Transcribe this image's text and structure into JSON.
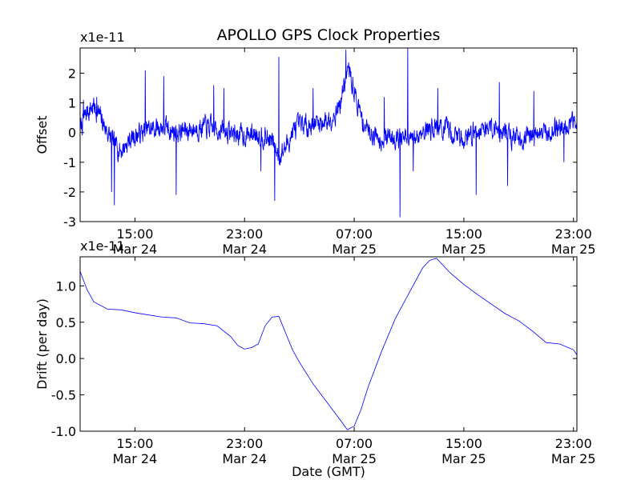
{
  "figure": {
    "title": "APOLLO GPS Clock Properties"
  },
  "chart_data": [
    {
      "type": "line",
      "title": "APOLLO GPS Clock Properties",
      "xlabel": "",
      "ylabel": "Offset",
      "offset_label": "x1e-11",
      "x_unit": "hours since Mar 24 11:00 GMT",
      "xlim": [
        0,
        36.25
      ],
      "ylim": [
        -3,
        2.85
      ],
      "x_ticks": [
        {
          "x": 4,
          "time": "15:00",
          "date": "Mar 24"
        },
        {
          "x": 12,
          "time": "23:00",
          "date": "Mar 24"
        },
        {
          "x": 20,
          "time": "07:00",
          "date": "Mar 25"
        },
        {
          "x": 28,
          "time": "15:00",
          "date": "Mar 25"
        },
        {
          "x": 36,
          "time": "23:00",
          "date": "Mar 25"
        }
      ],
      "y_ticks": [
        -3,
        -2,
        -1,
        0,
        1,
        2
      ],
      "y_tick_labels": [
        "-3",
        "-2",
        "-1",
        "0",
        "1",
        "2"
      ],
      "grid": false,
      "color": "#0000ff",
      "noise_amplitude": 0.38,
      "base_curve": {
        "x": [
          0,
          0.5,
          1,
          1.5,
          2,
          2.5,
          3,
          3.5,
          4,
          5,
          6,
          7,
          8,
          9,
          10,
          11,
          12,
          13,
          14,
          14.5,
          15,
          15.5,
          16,
          17,
          18,
          18.5,
          19,
          19.3,
          19.6,
          20,
          20.5,
          21,
          22,
          23,
          24,
          24.5,
          25,
          26,
          27,
          28,
          29,
          30,
          31,
          32,
          33,
          34,
          35,
          36,
          36.25
        ],
        "y": [
          0.1,
          0.7,
          0.9,
          0.5,
          0.0,
          -0.4,
          -0.6,
          -0.3,
          -0.1,
          0.1,
          0.2,
          0.0,
          0.1,
          0.2,
          0.1,
          0.0,
          -0.1,
          0.0,
          -0.3,
          -0.8,
          -0.5,
          0.0,
          0.2,
          0.3,
          0.4,
          0.6,
          1.0,
          1.7,
          2.1,
          1.4,
          0.5,
          0.1,
          -0.2,
          -0.1,
          -0.3,
          -0.2,
          0.1,
          0.2,
          0.0,
          -0.2,
          0.1,
          0.2,
          0.0,
          -0.2,
          -0.1,
          0.0,
          0.2,
          0.3,
          0.4
        ]
      },
      "spikes": [
        {
          "x": 0.25,
          "y": 1.1
        },
        {
          "x": 1.2,
          "y": 1.2
        },
        {
          "x": 2.3,
          "y": -2.0
        },
        {
          "x": 2.5,
          "y": -2.45
        },
        {
          "x": 4.75,
          "y": 2.1
        },
        {
          "x": 6.1,
          "y": 1.9
        },
        {
          "x": 7.0,
          "y": -2.1
        },
        {
          "x": 9.75,
          "y": 1.6
        },
        {
          "x": 10.5,
          "y": 1.5
        },
        {
          "x": 13.2,
          "y": -1.3
        },
        {
          "x": 14.2,
          "y": -2.3
        },
        {
          "x": 14.5,
          "y": 2.55
        },
        {
          "x": 17.0,
          "y": 1.5
        },
        {
          "x": 19.4,
          "y": 2.8
        },
        {
          "x": 22.2,
          "y": 1.2
        },
        {
          "x": 23.35,
          "y": -2.85
        },
        {
          "x": 23.9,
          "y": 2.9
        },
        {
          "x": 24.3,
          "y": -1.3
        },
        {
          "x": 26.1,
          "y": 1.5
        },
        {
          "x": 28.9,
          "y": -2.1
        },
        {
          "x": 30.6,
          "y": 1.7
        },
        {
          "x": 31.2,
          "y": -1.8
        },
        {
          "x": 33.1,
          "y": 1.4
        },
        {
          "x": 35.3,
          "y": -1.0
        }
      ]
    },
    {
      "type": "line",
      "title": "",
      "xlabel": "Date (GMT)",
      "ylabel": "Drift (per day)",
      "offset_label": "x1e-11",
      "x_unit": "hours since Mar 24 11:00 GMT",
      "xlim": [
        0,
        36.25
      ],
      "ylim": [
        -1.0,
        1.4
      ],
      "x_ticks": [
        {
          "x": 4,
          "time": "15:00",
          "date": "Mar 24"
        },
        {
          "x": 12,
          "time": "23:00",
          "date": "Mar 24"
        },
        {
          "x": 20,
          "time": "07:00",
          "date": "Mar 25"
        },
        {
          "x": 28,
          "time": "15:00",
          "date": "Mar 25"
        },
        {
          "x": 36,
          "time": "23:00",
          "date": "Mar 25"
        }
      ],
      "y_ticks": [
        -1.0,
        -0.5,
        0.0,
        0.5,
        1.0
      ],
      "y_tick_labels": [
        "-1.0",
        "-0.5",
        "0.0",
        "0.5",
        "1.0"
      ],
      "grid": false,
      "color": "#0000ff",
      "x": [
        0,
        0.5,
        1,
        2,
        3,
        4,
        5,
        6,
        7,
        8,
        9,
        10,
        11,
        11.5,
        12,
        12.5,
        13,
        13.5,
        14,
        14.5,
        15,
        15.5,
        16,
        17,
        18,
        19,
        19.5,
        20,
        20.5,
        21,
        22,
        23,
        24,
        25,
        25.5,
        26,
        27,
        28,
        29,
        30,
        31,
        32,
        33,
        34,
        35,
        36,
        36.25
      ],
      "y": [
        1.2,
        0.95,
        0.78,
        0.68,
        0.67,
        0.63,
        0.6,
        0.57,
        0.56,
        0.49,
        0.48,
        0.45,
        0.3,
        0.18,
        0.13,
        0.15,
        0.2,
        0.45,
        0.57,
        0.58,
        0.35,
        0.12,
        -0.05,
        -0.35,
        -0.6,
        -0.85,
        -0.98,
        -0.93,
        -0.7,
        -0.4,
        0.1,
        0.55,
        0.9,
        1.25,
        1.35,
        1.38,
        1.18,
        1.02,
        0.88,
        0.75,
        0.62,
        0.52,
        0.38,
        0.22,
        0.2,
        0.12,
        0.05
      ]
    }
  ]
}
